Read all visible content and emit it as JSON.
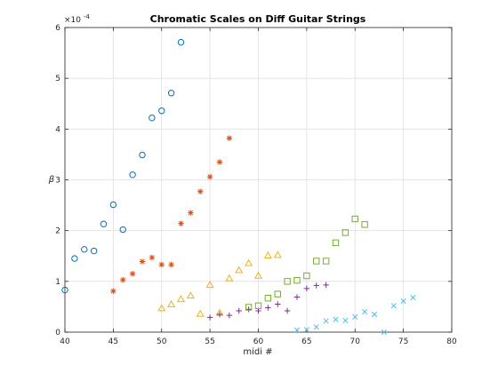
{
  "chart_data": {
    "type": "scatter",
    "title": "Chromatic Scales on Diff Guitar Strings",
    "xlabel": "midi #",
    "ylabel": "β",
    "y_exponent": {
      "base": "×10",
      "power": "-4"
    },
    "xlim": [
      40,
      80
    ],
    "ylim": [
      0,
      0.0006
    ],
    "xticks": [
      40,
      45,
      50,
      55,
      60,
      65,
      70,
      75,
      80
    ],
    "yticks": [
      0,
      0.0001,
      0.0002,
      0.0003,
      0.0004,
      0.0005,
      0.0006
    ],
    "yticklabels": [
      "0",
      "1",
      "2",
      "3",
      "4",
      "5",
      "6"
    ],
    "grid": true,
    "series": [
      {
        "marker": "circle",
        "color": "#0072BD",
        "points": [
          [
            40,
            8.3e-05
          ],
          [
            41,
            0.000145
          ],
          [
            42,
            0.000163
          ],
          [
            43,
            0.00016
          ],
          [
            44,
            0.000213
          ],
          [
            45,
            0.000251
          ],
          [
            46,
            0.000202
          ],
          [
            47,
            0.00031
          ],
          [
            48,
            0.000349
          ],
          [
            49,
            0.000422
          ],
          [
            50,
            0.000436
          ],
          [
            51,
            0.000471
          ],
          [
            52,
            0.000571
          ]
        ]
      },
      {
        "marker": "asterisk",
        "color": "#D95319",
        "points": [
          [
            45,
            8.1e-05
          ],
          [
            46,
            0.000103
          ],
          [
            47,
            0.000115
          ],
          [
            48,
            0.000139
          ],
          [
            49,
            0.000147
          ],
          [
            50,
            0.000133
          ],
          [
            51,
            0.000133
          ],
          [
            52,
            0.000214
          ],
          [
            53,
            0.000235
          ],
          [
            54,
            0.000277
          ],
          [
            55,
            0.000306
          ],
          [
            56,
            0.000335
          ],
          [
            57,
            0.000382
          ]
        ]
      },
      {
        "marker": "triangle",
        "color": "#EDB120",
        "points": [
          [
            50,
            4.7e-05
          ],
          [
            51,
            5.5e-05
          ],
          [
            52,
            6.5e-05
          ],
          [
            53,
            7.2e-05
          ],
          [
            54,
            3.6e-05
          ],
          [
            55,
            9.3e-05
          ],
          [
            56,
            3.8e-05
          ],
          [
            57,
            0.000106
          ],
          [
            58,
            0.000122
          ],
          [
            59,
            0.000136
          ],
          [
            60,
            0.000111
          ],
          [
            61,
            0.000151
          ],
          [
            62,
            0.000152
          ]
        ]
      },
      {
        "marker": "plus",
        "color": "#7E2F8E",
        "points": [
          [
            55,
            2.9e-05
          ],
          [
            56,
            3.5e-05
          ],
          [
            57,
            3.3e-05
          ],
          [
            58,
            4.2e-05
          ],
          [
            59,
            4.5e-05
          ],
          [
            60,
            4.2e-05
          ],
          [
            61,
            4.8e-05
          ],
          [
            62,
            5.5e-05
          ],
          [
            63,
            4.2e-05
          ],
          [
            64,
            6.9e-05
          ],
          [
            65,
            8.6e-05
          ],
          [
            66,
            9.2e-05
          ],
          [
            67,
            9.3e-05
          ]
        ]
      },
      {
        "marker": "square",
        "color": "#77AC30",
        "points": [
          [
            59,
            4.9e-05
          ],
          [
            60,
            5.2e-05
          ],
          [
            61,
            6.7e-05
          ],
          [
            62,
            7.5e-05
          ],
          [
            63,
            0.0001
          ],
          [
            64,
            0.000102
          ],
          [
            65,
            0.000111
          ],
          [
            66,
            0.00014
          ],
          [
            67,
            0.00014
          ],
          [
            68,
            0.000176
          ],
          [
            69,
            0.000196
          ],
          [
            70,
            0.000223
          ],
          [
            71,
            0.000212
          ]
        ]
      },
      {
        "marker": "cross",
        "color": "#4DBEEE",
        "points": [
          [
            64,
            4e-06
          ],
          [
            65,
            5e-06
          ],
          [
            66,
            1e-05
          ],
          [
            67,
            2.2e-05
          ],
          [
            68,
            2.5e-05
          ],
          [
            69,
            2.3e-05
          ],
          [
            70,
            3e-05
          ],
          [
            71,
            4e-05
          ],
          [
            72,
            3.5e-05
          ],
          [
            73,
            0.0
          ],
          [
            74,
            5.2e-05
          ],
          [
            75,
            6.1e-05
          ],
          [
            76,
            6.8e-05
          ]
        ]
      }
    ]
  }
}
